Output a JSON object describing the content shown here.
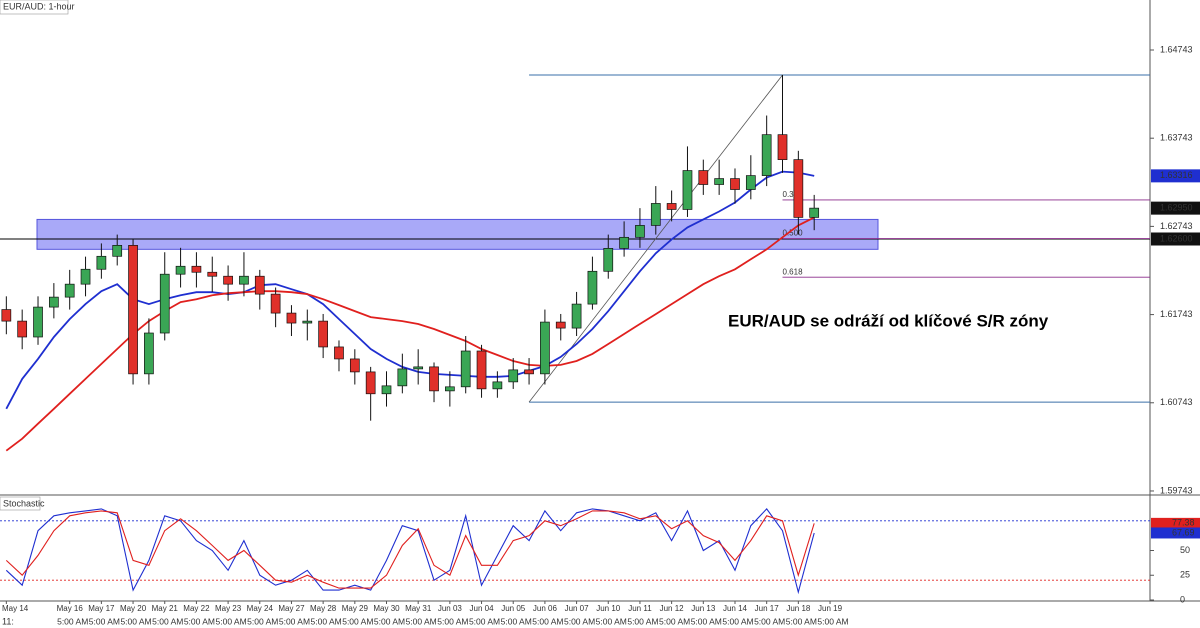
{
  "chart_data": {
    "type": "candlestick",
    "title": "EUR/AUD: 1-hour",
    "annotation": "EUR/AUD se odráží od klíčové S/R zóny",
    "corner_label": "11:",
    "up_color": "#3aa655",
    "down_color": "#e0302a",
    "x": [
      0,
      0.5,
      1,
      1.5,
      2,
      2.5,
      3,
      3.5,
      4,
      4.5,
      5,
      5.5,
      6,
      6.5,
      7,
      7.5,
      8,
      8.5,
      9,
      9.5,
      10,
      10.5,
      11,
      11.5,
      12,
      12.5,
      13,
      13.5,
      14,
      14.5,
      15,
      15.5,
      16,
      16.5,
      17,
      17.5,
      18,
      18.5,
      19,
      19.5,
      20,
      20.5,
      21,
      21.5,
      22,
      22.5,
      23,
      23.5,
      24,
      24.5,
      25,
      25.5
    ],
    "open": [
      1.618,
      1.61669,
      1.61489,
      1.61828,
      1.61941,
      1.62088,
      1.62257,
      1.62404,
      1.62528,
      1.61071,
      1.61534,
      1.62201,
      1.62291,
      1.62223,
      1.62178,
      1.62088,
      1.62178,
      1.61975,
      1.6176,
      1.61647,
      1.61669,
      1.61376,
      1.6124,
      1.61093,
      1.60845,
      1.60935,
      1.61127,
      1.6115,
      1.60878,
      1.60924,
      1.6133,
      1.60901,
      1.6098,
      1.61116,
      1.61071,
      1.61658,
      1.6159,
      1.61862,
      1.62234,
      1.62494,
      1.62619,
      1.62754,
      1.63003,
      1.62935,
      1.63376,
      1.63218,
      1.63285,
      1.63161,
      1.63319,
      1.63783,
      1.635,
      1.62845
    ],
    "high": [
      1.6195,
      1.618,
      1.6195,
      1.621,
      1.6225,
      1.624,
      1.6255,
      1.6265,
      1.626,
      1.617,
      1.6245,
      1.625,
      1.6245,
      1.624,
      1.623,
      1.6245,
      1.6225,
      1.6205,
      1.6185,
      1.618,
      1.6175,
      1.6145,
      1.6135,
      1.6115,
      1.611,
      1.613,
      1.6135,
      1.612,
      1.611,
      1.615,
      1.614,
      1.611,
      1.6125,
      1.6125,
      1.618,
      1.6175,
      1.62,
      1.624,
      1.6265,
      1.628,
      1.6295,
      1.632,
      1.6315,
      1.6365,
      1.635,
      1.635,
      1.634,
      1.6355,
      1.64,
      1.6446,
      1.636,
      1.631
    ],
    "low": [
      1.6152,
      1.6135,
      1.614,
      1.617,
      1.618,
      1.6195,
      1.6215,
      1.623,
      1.6095,
      1.6095,
      1.6145,
      1.6205,
      1.6205,
      1.62,
      1.619,
      1.6195,
      1.618,
      1.616,
      1.615,
      1.6145,
      1.6125,
      1.611,
      1.6095,
      1.6054,
      1.607,
      1.6085,
      1.6095,
      1.6075,
      1.607,
      1.6085,
      1.608,
      1.608,
      1.609,
      1.6095,
      1.6095,
      1.6145,
      1.615,
      1.618,
      1.6215,
      1.624,
      1.625,
      1.6265,
      1.628,
      1.6285,
      1.631,
      1.631,
      1.63,
      1.6305,
      1.632,
      1.6335,
      1.6265,
      1.627
    ],
    "close": [
      1.61669,
      1.61489,
      1.61828,
      1.61941,
      1.62088,
      1.62257,
      1.62404,
      1.62528,
      1.61071,
      1.61534,
      1.62201,
      1.62291,
      1.62223,
      1.62178,
      1.62088,
      1.62178,
      1.61975,
      1.6176,
      1.61647,
      1.61669,
      1.61376,
      1.6124,
      1.61093,
      1.60845,
      1.60935,
      1.61127,
      1.6115,
      1.60878,
      1.60924,
      1.6133,
      1.60901,
      1.6098,
      1.61116,
      1.61071,
      1.61658,
      1.6159,
      1.61862,
      1.62234,
      1.62494,
      1.62619,
      1.62754,
      1.63003,
      1.62935,
      1.63376,
      1.63218,
      1.63285,
      1.63161,
      1.63319,
      1.63783,
      1.635,
      1.62845,
      1.6295
    ],
    "moving_averages": [
      {
        "color": "#1f2fd0",
        "values": [
          1.60675,
          1.61014,
          1.6124,
          1.61489,
          1.61692,
          1.61862,
          1.62008,
          1.62088,
          1.61918,
          1.61862,
          1.61918,
          1.61963,
          1.61997,
          1.61997,
          1.61975,
          1.61997,
          1.62076,
          1.62088,
          1.62031,
          1.61975,
          1.61862,
          1.61692,
          1.61523,
          1.61353,
          1.6124,
          1.6115,
          1.61093,
          1.61071,
          1.61059,
          1.61048,
          1.61037,
          1.61037,
          1.61048,
          1.61104,
          1.61161,
          1.61263,
          1.6141,
          1.61579,
          1.61782,
          1.62008,
          1.62234,
          1.62438,
          1.62596,
          1.62732,
          1.62822,
          1.62912,
          1.63014,
          1.63161,
          1.63297,
          1.63364,
          1.63353,
          1.63316
        ]
      },
      {
        "color": "#e0201e",
        "values": [
          1.602,
          1.60336,
          1.60506,
          1.60675,
          1.60845,
          1.61014,
          1.61184,
          1.61353,
          1.61523,
          1.61669,
          1.61782,
          1.61884,
          1.61918,
          1.61963,
          1.61986,
          1.61997,
          1.62008,
          1.62008,
          1.61997,
          1.61975,
          1.61918,
          1.6185,
          1.61782,
          1.61715,
          1.61692,
          1.61669,
          1.61636,
          1.61579,
          1.61511,
          1.61443,
          1.61353,
          1.61285,
          1.61217,
          1.61172,
          1.61161,
          1.61172,
          1.61217,
          1.61297,
          1.6141,
          1.61523,
          1.61636,
          1.61749,
          1.61862,
          1.61975,
          1.62088,
          1.62178,
          1.62257,
          1.6237,
          1.62483,
          1.62619,
          1.62754,
          1.62845
        ]
      }
    ],
    "ylim": [
      1.5972,
      1.6531
    ],
    "yticks": [
      1.64743,
      1.63743,
      1.62743,
      1.61743,
      1.60743,
      1.59743
    ],
    "xlim": [
      -0.2,
      36.1
    ],
    "xticks": [
      {
        "value": 0,
        "label": "May 14"
      },
      {
        "value": 2,
        "label": "May 16"
      },
      {
        "value": 3,
        "label": "May 17"
      },
      {
        "value": 4,
        "label": "May 20"
      },
      {
        "value": 5,
        "label": "May 21"
      },
      {
        "value": 6,
        "label": "May 22"
      },
      {
        "value": 7,
        "label": "May 23"
      },
      {
        "value": 8,
        "label": "May 24"
      },
      {
        "value": 9,
        "label": "May 27"
      },
      {
        "value": 10,
        "label": "May 28"
      },
      {
        "value": 11,
        "label": "May 29"
      },
      {
        "value": 12,
        "label": "May 30"
      },
      {
        "value": 13,
        "label": "May 31"
      },
      {
        "value": 14,
        "label": "Jun 03"
      },
      {
        "value": 15,
        "label": "Jun 04"
      },
      {
        "value": 16,
        "label": "Jun 05"
      },
      {
        "value": 17,
        "label": "Jun 06"
      },
      {
        "value": 18,
        "label": "Jun 07"
      },
      {
        "value": 19,
        "label": "Jun 10"
      },
      {
        "value": 20,
        "label": "Jun 11"
      },
      {
        "value": 21,
        "label": "Jun 12"
      },
      {
        "value": 22,
        "label": "Jun 13"
      },
      {
        "value": 23,
        "label": "Jun 14"
      },
      {
        "value": 24,
        "label": "Jun 17"
      },
      {
        "value": 25,
        "label": "Jun 18"
      },
      {
        "value": 26,
        "label": "Jun 19"
      }
    ],
    "time_labels": [
      "5:00 AM",
      "5:00 AM",
      "5:00 AM",
      "5:00 AM",
      "5:00 AM",
      "5:00 AM",
      "5:00 AM",
      "5:00 AM",
      "5:00 AM",
      "5:00 AM",
      "5:00 AM",
      "5:00 AM",
      "5:00 AM",
      "5:00 AM",
      "5:00 AM",
      "5:00 AM",
      "5:00 AM",
      "5:00 AM",
      "5:00 AM",
      "5:00 AM",
      "5:00 AM",
      "5:00 AM",
      "5:00 AM",
      "5:00 AM",
      "5:00 AM"
    ],
    "support_resistance": {
      "line": 1.626,
      "zone": [
        1.62483,
        1.62822
      ],
      "color": "#8c8cf5"
    },
    "swing_low": 1.6075,
    "swing_high": 1.6446,
    "fib_levels": [
      {
        "label": "0.382",
        "price": 1.63043
      },
      {
        "label": "0.500",
        "price": 1.62605
      },
      {
        "label": "0.618",
        "price": 1.62167
      }
    ],
    "price_badges": [
      {
        "value": 1.63316,
        "label": "1.63316",
        "color": "#1f2fd0"
      },
      {
        "value": 1.6295,
        "label": "1.62950",
        "color": "#111111"
      },
      {
        "value": 1.626,
        "label": "1.62600",
        "color": "#111111"
      }
    ],
    "stochastic": {
      "title": "Stochastic",
      "ylim": [
        -1,
        104
      ],
      "yticks": [
        0,
        25,
        50
      ],
      "levels": [
        {
          "value": 80,
          "color": "#1f2fd0"
        },
        {
          "value": 20,
          "color": "#e0201e"
        }
      ],
      "lines": [
        {
          "color": "#1f2fd0",
          "values": [
            30,
            15,
            70,
            85,
            88,
            90,
            92,
            85,
            10,
            40,
            85,
            80,
            60,
            50,
            30,
            60,
            25,
            15,
            20,
            30,
            10,
            10,
            15,
            10,
            40,
            75,
            70,
            20,
            30,
            85,
            15,
            45,
            75,
            60,
            90,
            70,
            88,
            92,
            90,
            85,
            80,
            88,
            60,
            90,
            50,
            60,
            30,
            75,
            92,
            70,
            8,
            67.69
          ]
        },
        {
          "color": "#e0201e",
          "values": [
            40,
            25,
            45,
            70,
            85,
            88,
            90,
            88,
            40,
            35,
            70,
            82,
            70,
            55,
            40,
            50,
            35,
            20,
            18,
            25,
            18,
            12,
            12,
            12,
            25,
            55,
            72,
            35,
            25,
            65,
            35,
            35,
            60,
            65,
            80,
            75,
            82,
            90,
            90,
            88,
            82,
            85,
            72,
            80,
            65,
            58,
            40,
            60,
            85,
            80,
            25,
            77.38
          ]
        }
      ],
      "badges": [
        {
          "value": 77.38,
          "label": "77.38",
          "color": "#e0201e"
        },
        {
          "value": 67.69,
          "label": "67.69",
          "color": "#1f2fd0"
        }
      ]
    }
  }
}
